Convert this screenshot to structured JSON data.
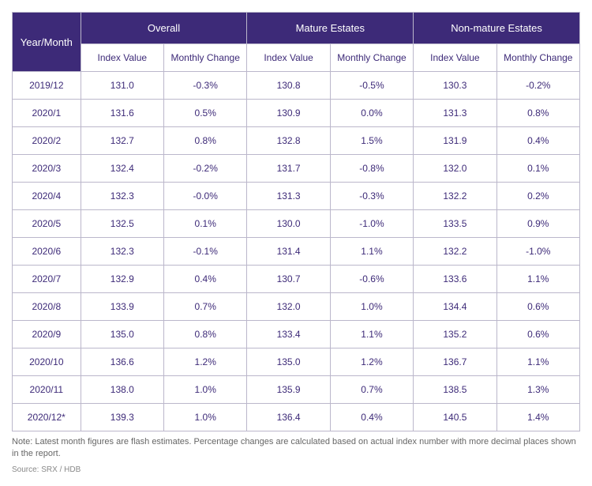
{
  "table": {
    "type": "table",
    "header_bg_color": "#3d2a78",
    "header_text_color": "#ffffff",
    "cell_text_color": "#3d2a78",
    "border_color": "#bbb7cb",
    "background_color": "#ffffff",
    "font_family": "Arial",
    "header_fontsize": 13,
    "subheader_fontsize": 12,
    "cell_fontsize": 12,
    "columns_level1": [
      "Year/Month",
      "Overall",
      "Mature Estates",
      "Non-mature Estates"
    ],
    "columns_level2": [
      "Index Value",
      "Monthly Change",
      "Index Value",
      "Monthly Change",
      "Index Value",
      "Monthly Change"
    ],
    "rows": [
      {
        "ym": "2019/12",
        "c": [
          "131.0",
          "-0.3%",
          "130.8",
          "-0.5%",
          "130.3",
          "-0.2%"
        ]
      },
      {
        "ym": "2020/1",
        "c": [
          "131.6",
          "0.5%",
          "130.9",
          "0.0%",
          "131.3",
          "0.8%"
        ]
      },
      {
        "ym": "2020/2",
        "c": [
          "132.7",
          "0.8%",
          "132.8",
          "1.5%",
          "131.9",
          "0.4%"
        ]
      },
      {
        "ym": "2020/3",
        "c": [
          "132.4",
          "-0.2%",
          "131.7",
          "-0.8%",
          "132.0",
          "0.1%"
        ]
      },
      {
        "ym": "2020/4",
        "c": [
          "132.3",
          "-0.0%",
          "131.3",
          "-0.3%",
          "132.2",
          "0.2%"
        ]
      },
      {
        "ym": "2020/5",
        "c": [
          "132.5",
          "0.1%",
          "130.0",
          "-1.0%",
          "133.5",
          "0.9%"
        ]
      },
      {
        "ym": "2020/6",
        "c": [
          "132.3",
          "-0.1%",
          "131.4",
          "1.1%",
          "132.2",
          "-1.0%"
        ]
      },
      {
        "ym": "2020/7",
        "c": [
          "132.9",
          "0.4%",
          "130.7",
          "-0.6%",
          "133.6",
          "1.1%"
        ]
      },
      {
        "ym": "2020/8",
        "c": [
          "133.9",
          "0.7%",
          "132.0",
          "1.0%",
          "134.4",
          "0.6%"
        ]
      },
      {
        "ym": "2020/9",
        "c": [
          "135.0",
          "0.8%",
          "133.4",
          "1.1%",
          "135.2",
          "0.6%"
        ]
      },
      {
        "ym": "2020/10",
        "c": [
          "136.6",
          "1.2%",
          "135.0",
          "1.2%",
          "136.7",
          "1.1%"
        ]
      },
      {
        "ym": "2020/11",
        "c": [
          "138.0",
          "1.0%",
          "135.9",
          "0.7%",
          "138.5",
          "1.3%"
        ]
      },
      {
        "ym": "2020/12*",
        "c": [
          "139.3",
          "1.0%",
          "136.4",
          "0.4%",
          "140.5",
          "1.4%"
        ]
      }
    ]
  },
  "note_text": "Note: Latest month figures are flash estimates. Percentage changes are calculated based on actual index number with more decimal places shown in the report.",
  "source_text": "Source: SRX / HDB"
}
